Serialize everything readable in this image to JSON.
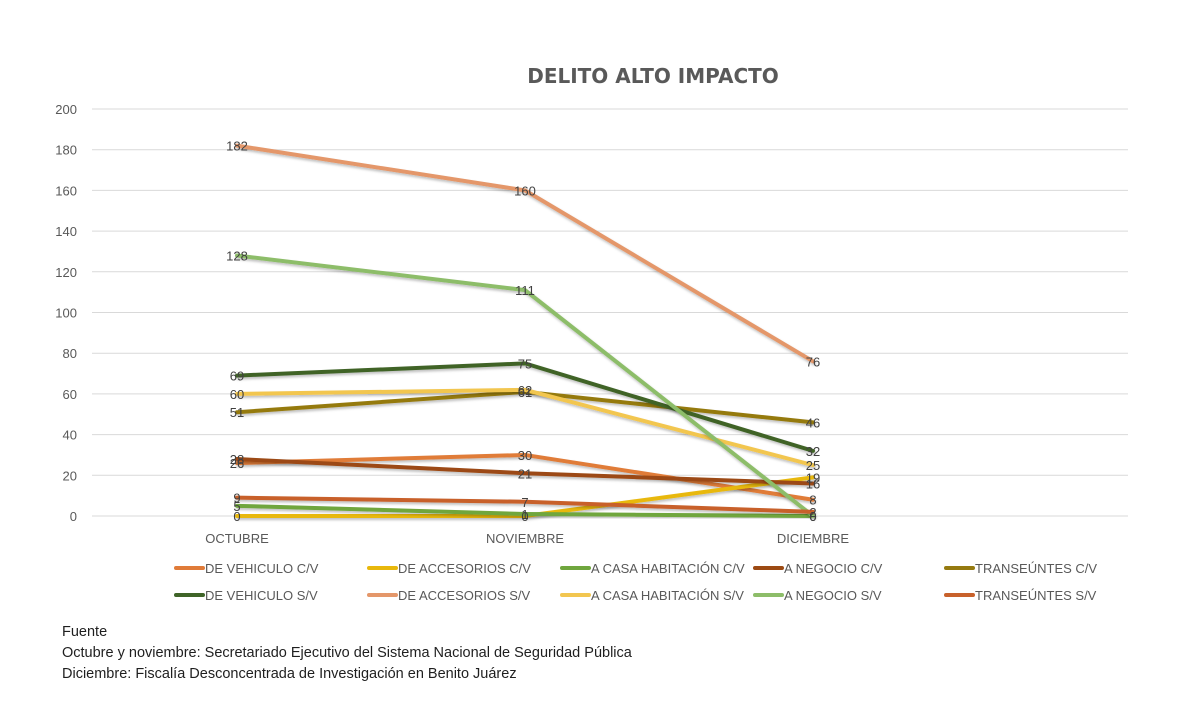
{
  "chart_data": {
    "type": "line",
    "title": "DELITO ALTO IMPACTO",
    "xlabel": "",
    "ylabel": "",
    "categories": [
      "OCTUBRE",
      "NOVIEMBRE",
      "DICIEMBRE"
    ],
    "ylim": [
      0,
      200
    ],
    "yticks": [
      0,
      20,
      40,
      60,
      80,
      100,
      120,
      140,
      160,
      180,
      200
    ],
    "grid": true,
    "legend_position": "bottom",
    "data_labels": true,
    "series": [
      {
        "name": "DE VEHICULO C/V",
        "color": "#E07B39",
        "values": [
          26,
          30,
          8
        ]
      },
      {
        "name": "DE ACCESORIOS C/V",
        "color": "#E8B80C",
        "values": [
          0,
          0,
          19
        ]
      },
      {
        "name": "A CASA HABITACIÓN C/V",
        "color": "#6FA63E",
        "values": [
          5,
          1,
          0
        ]
      },
      {
        "name": "A NEGOCIO C/V",
        "color": "#9C4A13",
        "values": [
          28,
          21,
          16
        ]
      },
      {
        "name": "TRANSEÚNTES C/V",
        "color": "#957A10",
        "values": [
          51,
          61,
          46
        ]
      },
      {
        "name": "DE VEHICULO S/V",
        "color": "#3F6428",
        "values": [
          69,
          75,
          32
        ]
      },
      {
        "name": "DE ACCESORIOS S/V",
        "color": "#E4976A",
        "values": [
          182,
          160,
          76
        ]
      },
      {
        "name": "A CASA HABITACIÓN S/V",
        "color": "#F2C650",
        "values": [
          60,
          62,
          25
        ]
      },
      {
        "name": "A NEGOCIO S/V",
        "color": "#8DBD69",
        "values": [
          128,
          111,
          0
        ]
      },
      {
        "name": "TRANSEÚNTES S/V",
        "color": "#C8612B",
        "values": [
          9,
          7,
          2
        ]
      }
    ]
  },
  "footer": {
    "lines": [
      "Fuente",
      "Octubre y noviembre: Secretariado Ejecutivo del Sistema Nacional de Seguridad Pública",
      "Diciembre: Fiscalía Desconcentrada de Investigación en Benito Juárez"
    ]
  }
}
